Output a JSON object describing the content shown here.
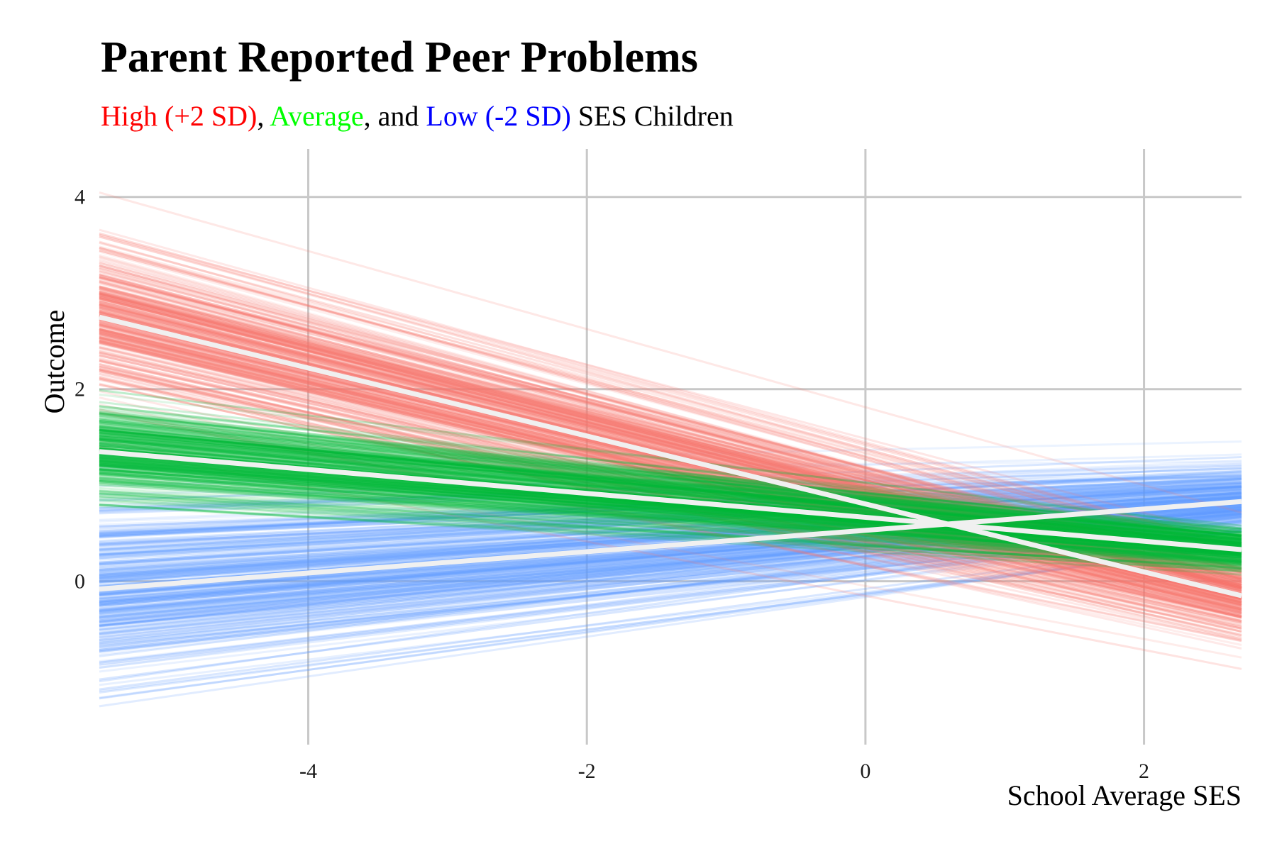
{
  "title": "Parent Reported Peer Problems",
  "subtitle": {
    "high": "High (+2 SD)",
    "sep1": ", ",
    "average": "Average",
    "sep2": ", and ",
    "low": "Low (-2 SD)",
    "suffix": " SES Children"
  },
  "colors": {
    "high": "#F8766D",
    "average": "#00BA38",
    "low": "#619CFF",
    "high_text": "#FF0000",
    "average_text": "#00FF00",
    "low_text": "#0000FF",
    "mean_line": "#F0F0F0",
    "grid": "#C8C8C8"
  },
  "chart_data": {
    "type": "line",
    "title": "Parent Reported Peer Problems",
    "xlabel": "School Average SES",
    "ylabel": "Outcome",
    "xlim": [
      -5.5,
      2.7
    ],
    "ylim": [
      -1.7,
      4.5
    ],
    "xticks": [
      "-4",
      "-2",
      "0",
      "2"
    ],
    "yticks": [
      "0",
      "2",
      "4"
    ],
    "grid": true,
    "legend": "subtitle",
    "series": [
      {
        "name": "High (+2 SD)",
        "color_key": "high",
        "mean": {
          "x": [
            -5.5,
            2.7
          ],
          "y": [
            2.75,
            -0.15
          ]
        },
        "band_at_left": [
          1.9,
          3.9
        ],
        "band_at_right": [
          -0.85,
          0.55
        ],
        "draws": 300
      },
      {
        "name": "Average",
        "color_key": "average",
        "mean": {
          "x": [
            -5.5,
            2.7
          ],
          "y": [
            1.35,
            0.33
          ]
        },
        "band_at_left": [
          0.8,
          1.9
        ],
        "band_at_right": [
          0.0,
          0.65
        ],
        "draws": 300
      },
      {
        "name": "Low (-2 SD)",
        "color_key": "low",
        "mean": {
          "x": [
            -5.5,
            2.7
          ],
          "y": [
            -0.08,
            0.83
          ]
        },
        "band_at_left": [
          -1.4,
          1.0
        ],
        "band_at_right": [
          0.25,
          1.45
        ],
        "draws": 300
      }
    ]
  }
}
